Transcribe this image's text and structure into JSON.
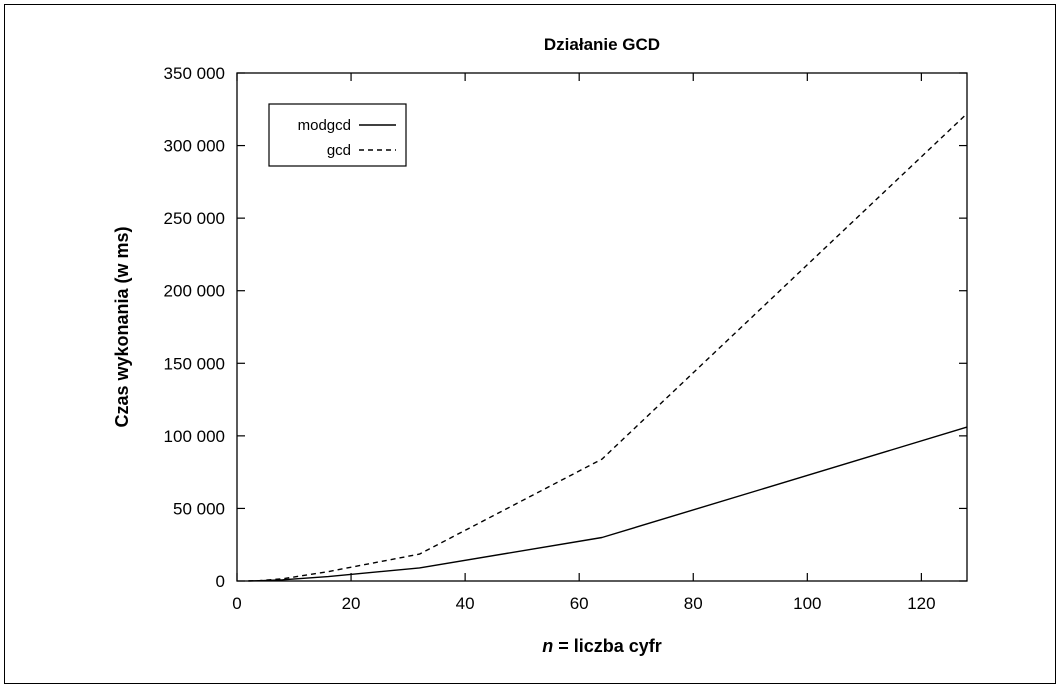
{
  "chart_data": {
    "type": "line",
    "title": "Działanie GCD",
    "xlabel_var": "n",
    "xlabel_rest": " = liczba cyfr",
    "ylabel": "Czas wykonania (w ms)",
    "xlim": [
      0,
      128
    ],
    "ylim": [
      0,
      350000
    ],
    "xticks": [
      0,
      20,
      40,
      60,
      80,
      100,
      120
    ],
    "xtick_labels": [
      "0",
      "20",
      "40",
      "60",
      "80",
      "100",
      "120"
    ],
    "yticks": [
      0,
      50000,
      100000,
      150000,
      200000,
      250000,
      300000,
      350000
    ],
    "ytick_labels": [
      "0",
      "50 000",
      "100 000",
      "150 000",
      "200 000",
      "250 000",
      "300 000",
      "350 000"
    ],
    "grid": false,
    "legend_position": "top-left",
    "x": [
      2,
      4,
      8,
      16,
      32,
      64,
      128
    ],
    "series": [
      {
        "name": "modgcd",
        "style": "solid",
        "values": [
          50,
          200,
          800,
          3000,
          9000,
          30000,
          106000
        ]
      },
      {
        "name": "gcd",
        "style": "dashed",
        "values": [
          80,
          300,
          1500,
          6500,
          18500,
          84000,
          322000
        ]
      }
    ]
  }
}
